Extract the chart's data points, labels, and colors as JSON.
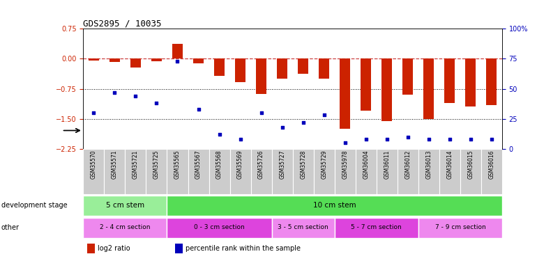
{
  "title": "GDS2895 / 10035",
  "samples": [
    "GSM35570",
    "GSM35571",
    "GSM35721",
    "GSM35725",
    "GSM35565",
    "GSM35567",
    "GSM35568",
    "GSM35569",
    "GSM35726",
    "GSM35727",
    "GSM35728",
    "GSM35729",
    "GSM35978",
    "GSM36004",
    "GSM36011",
    "GSM36012",
    "GSM36013",
    "GSM36014",
    "GSM36015",
    "GSM36016"
  ],
  "log2_ratio": [
    -0.05,
    -0.08,
    -0.22,
    -0.06,
    0.38,
    -0.12,
    -0.42,
    -0.58,
    -0.88,
    -0.5,
    -0.38,
    -0.5,
    -1.75,
    -1.3,
    -1.55,
    -0.9,
    -1.5,
    -1.1,
    -1.2,
    -1.15
  ],
  "pct_rank": [
    30,
    47,
    44,
    38,
    73,
    33,
    12,
    8,
    30,
    18,
    22,
    28,
    5,
    8,
    8,
    10,
    8,
    8,
    8,
    8
  ],
  "ylim_left": [
    -2.25,
    0.75
  ],
  "ylim_right": [
    0,
    100
  ],
  "yticks_left": [
    0.75,
    0,
    -0.75,
    -1.5,
    -2.25
  ],
  "yticks_right": [
    100,
    75,
    50,
    25,
    0
  ],
  "bar_color": "#CC2200",
  "dot_color": "#0000BB",
  "zero_line_color": "#CC4444",
  "bg_color": "#ffffff",
  "plot_bg": "#ffffff",
  "xtick_bg": "#CCCCCC",
  "development_stage_groups": [
    {
      "label": "5 cm stem",
      "start": 0,
      "end": 3,
      "color": "#99EE99"
    },
    {
      "label": "10 cm stem",
      "start": 4,
      "end": 19,
      "color": "#55DD55"
    }
  ],
  "other_groups": [
    {
      "label": "2 - 4 cm section",
      "start": 0,
      "end": 3,
      "color": "#EE88EE"
    },
    {
      "label": "0 - 3 cm section",
      "start": 4,
      "end": 8,
      "color": "#DD44DD"
    },
    {
      "label": "3 - 5 cm section",
      "start": 9,
      "end": 11,
      "color": "#EE88EE"
    },
    {
      "label": "5 - 7 cm section",
      "start": 12,
      "end": 15,
      "color": "#DD44DD"
    },
    {
      "label": "7 - 9 cm section",
      "start": 16,
      "end": 19,
      "color": "#EE88EE"
    }
  ],
  "dev_stage_label": "development stage",
  "other_label": "other",
  "legend_items": [
    {
      "label": "log2 ratio",
      "color": "#CC2200"
    },
    {
      "label": "percentile rank within the sample",
      "color": "#0000BB"
    }
  ]
}
